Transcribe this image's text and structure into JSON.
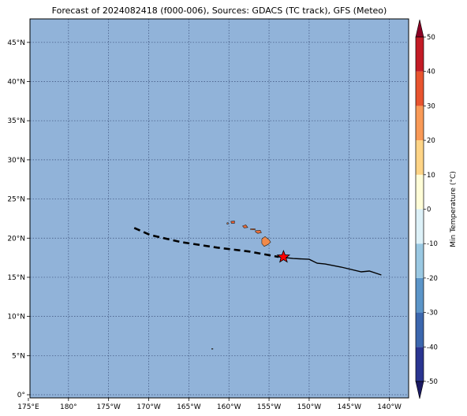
{
  "title": "Forecast of 2024082418 (f000-006), Sources: GDACS (TC track), GFS (Meteo)",
  "map": {
    "lon_range": [
      -184.8,
      -137.6
    ],
    "lat_range": [
      -0.4,
      48.0
    ],
    "ocean_color": "#91b3d9",
    "lon_ticks": [
      {
        "value": -185,
        "label": "175°E"
      },
      {
        "value": -180,
        "label": "180°"
      },
      {
        "value": -175,
        "label": "175°W"
      },
      {
        "value": -170,
        "label": "170°W"
      },
      {
        "value": -165,
        "label": "165°W"
      },
      {
        "value": -160,
        "label": "160°W"
      },
      {
        "value": -155,
        "label": "155°W"
      },
      {
        "value": -150,
        "label": "150°W"
      },
      {
        "value": -145,
        "label": "145°W"
      },
      {
        "value": -140,
        "label": "140°W"
      }
    ],
    "lat_ticks": [
      {
        "value": 0,
        "label": "0°"
      },
      {
        "value": 5,
        "label": "5°N"
      },
      {
        "value": 10,
        "label": "10°N"
      },
      {
        "value": 15,
        "label": "15°N"
      },
      {
        "value": 20,
        "label": "20°N"
      },
      {
        "value": 25,
        "label": "25°N"
      },
      {
        "value": 30,
        "label": "30°N"
      },
      {
        "value": 35,
        "label": "35°N"
      },
      {
        "value": 40,
        "label": "40°N"
      },
      {
        "value": 45,
        "label": "45°N"
      }
    ],
    "islands": [
      {
        "name": "Hawaii",
        "color": "#f08a4b",
        "points": [
          [
            -155.9,
            19.9
          ],
          [
            -155.5,
            20.2
          ],
          [
            -155.0,
            19.8
          ],
          [
            -154.8,
            19.5
          ],
          [
            -155.1,
            19.2
          ],
          [
            -155.6,
            18.95
          ],
          [
            -155.9,
            19.3
          ]
        ]
      },
      {
        "name": "Maui",
        "color": "#e9703c",
        "points": [
          [
            -156.7,
            20.95
          ],
          [
            -156.1,
            21.0
          ],
          [
            -155.95,
            20.7
          ],
          [
            -156.4,
            20.6
          ],
          [
            -156.7,
            20.8
          ]
        ]
      },
      {
        "name": "Molokai",
        "color": "#e67a45",
        "points": [
          [
            -157.3,
            21.2
          ],
          [
            -156.75,
            21.2
          ],
          [
            -156.75,
            21.05
          ],
          [
            -157.3,
            21.08
          ]
        ]
      },
      {
        "name": "Oahu",
        "color": "#e96a36",
        "points": [
          [
            -158.3,
            21.55
          ],
          [
            -157.9,
            21.7
          ],
          [
            -157.65,
            21.35
          ],
          [
            -158.1,
            21.3
          ]
        ]
      },
      {
        "name": "Kauai",
        "color": "#e55a2e",
        "points": [
          [
            -159.75,
            22.15
          ],
          [
            -159.3,
            22.2
          ],
          [
            -159.3,
            21.9
          ],
          [
            -159.7,
            21.9
          ]
        ]
      },
      {
        "name": "Niihau",
        "color": "#e87a44",
        "points": [
          [
            -160.25,
            21.95
          ],
          [
            -160.1,
            22.0
          ],
          [
            -160.1,
            21.8
          ],
          [
            -160.25,
            21.8
          ]
        ]
      },
      {
        "name": "Palmyra",
        "color": "#6b8a6b",
        "points": [
          [
            -162.15,
            5.9
          ],
          [
            -162.0,
            5.9
          ],
          [
            -162.0,
            5.82
          ],
          [
            -162.15,
            5.82
          ]
        ]
      }
    ],
    "track_forecast": [
      [
        -171.8,
        21.3
      ],
      [
        -169.8,
        20.4
      ],
      [
        -166.0,
        19.5
      ],
      [
        -161.5,
        18.8
      ],
      [
        -157.5,
        18.3
      ],
      [
        -153.8,
        17.6
      ]
    ],
    "track_observed": [
      [
        -153.8,
        17.6
      ],
      [
        -152.0,
        17.4
      ],
      [
        -150.0,
        17.3
      ],
      [
        -149.0,
        16.8
      ],
      [
        -148.0,
        16.7
      ],
      [
        -146.0,
        16.3
      ],
      [
        -143.5,
        15.7
      ],
      [
        -142.5,
        15.8
      ],
      [
        -141.0,
        15.3
      ]
    ],
    "current_position": {
      "lon": -153.2,
      "lat": 17.6,
      "color": "#ff0000"
    }
  },
  "colorbar": {
    "label": "Min Temperature (°C)",
    "ticks": [
      "-50",
      "-40",
      "-30",
      "-20",
      "-10",
      "0",
      "10",
      "20",
      "30",
      "40",
      "50"
    ],
    "levels": [
      -50,
      -40,
      -30,
      -20,
      -10,
      0,
      10,
      20,
      30,
      40,
      50
    ],
    "colors": [
      "#2a3591",
      "#3c67ae",
      "#5b95c8",
      "#9ac8e2",
      "#ddf1f8",
      "#fffdd7",
      "#fed486",
      "#f99a57",
      "#e8542f",
      "#c31c26",
      "#a30026"
    ],
    "under_color": "#1b1a63",
    "over_color": "#8a0024"
  }
}
